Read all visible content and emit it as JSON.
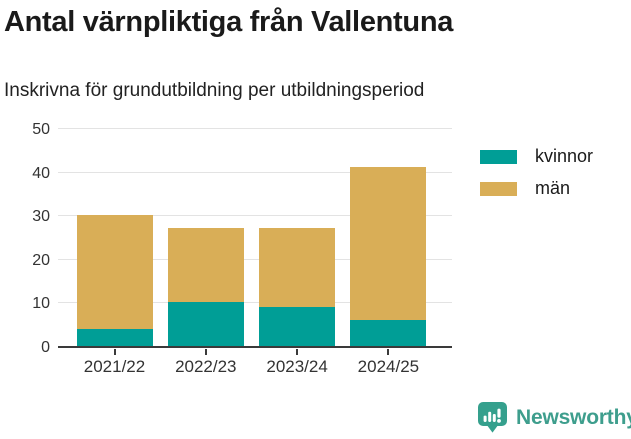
{
  "header": {
    "title": "Antal värnpliktiga från Vallentuna",
    "subtitle": "Inskrivna för grundutbildning per utbildningsperiod"
  },
  "chart_data": {
    "type": "bar",
    "stacked": true,
    "title": "Antal värnpliktiga från Vallentuna",
    "subtitle": "Inskrivna för grundutbildning per utbildningsperiod",
    "categories": [
      "2021/22",
      "2022/23",
      "2023/24",
      "2024/25"
    ],
    "series": [
      {
        "name": "kvinnor",
        "color": "#009e96",
        "values": [
          4,
          10,
          9,
          6
        ]
      },
      {
        "name": "män",
        "color": "#d9ae57",
        "values": [
          26,
          17,
          18,
          35
        ]
      }
    ],
    "totals": [
      30,
      27,
      27,
      41
    ],
    "xlabel": "",
    "ylabel": "",
    "ylim": [
      0,
      50
    ],
    "yticks": [
      0,
      10,
      20,
      30,
      40,
      50
    ],
    "grid": true,
    "legend_position": "right"
  },
  "footer": {
    "brand": "Newsworthy",
    "brand_color": "#3e9e8d",
    "icon": "newsworthy-chart-bubble"
  },
  "colors": {
    "grid": "#e3e3e3",
    "axis_line": "#3a3a3a",
    "axis_text": "#333333",
    "title_text": "#1a1a1a"
  }
}
